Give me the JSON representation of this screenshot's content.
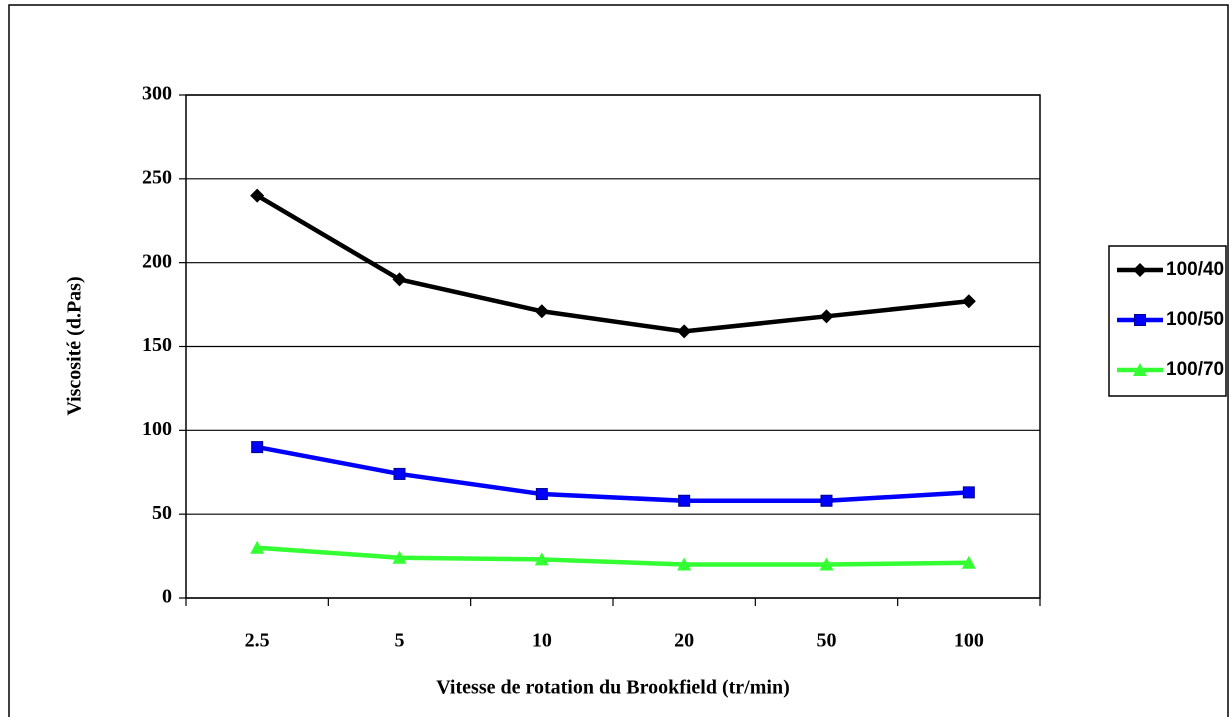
{
  "chart_data": {
    "type": "line",
    "xlabel": "Vitesse de rotation du Brookfield (tr/min)",
    "ylabel": "Viscosité (d.Pas)",
    "categories": [
      "2.5",
      "5",
      "10",
      "20",
      "50",
      "100"
    ],
    "series": [
      {
        "name": "100/40",
        "color": "#000000",
        "marker": "diamond",
        "values": [
          240,
          190,
          171,
          159,
          168,
          177
        ]
      },
      {
        "name": "100/50",
        "color": "#0000ff",
        "marker": "square",
        "values": [
          90,
          74,
          62,
          58,
          58,
          63
        ]
      },
      {
        "name": "100/70",
        "color": "#33ff33",
        "marker": "triangle",
        "values": [
          30,
          24,
          23,
          20,
          20,
          21
        ]
      }
    ],
    "ylim": [
      0,
      300
    ],
    "yticks": [
      0,
      50,
      100,
      150,
      200,
      250,
      300
    ],
    "grid": true,
    "legend": "right"
  }
}
